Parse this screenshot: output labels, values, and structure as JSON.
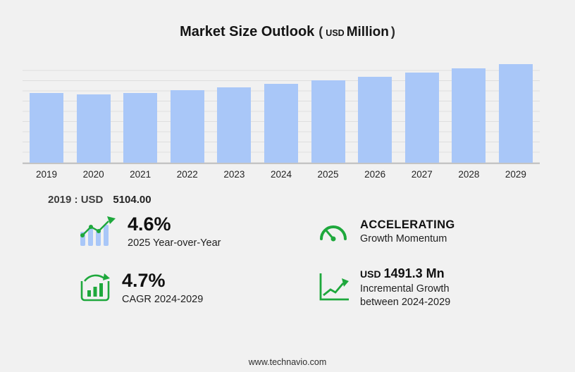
{
  "title": {
    "main": "Market Size Outlook",
    "open": "(",
    "currency": "USD",
    "unit": "Million",
    "close": ")"
  },
  "chart_data": {
    "type": "bar",
    "title": "Market Size Outlook (USD Million)",
    "categories": [
      "2019",
      "2020",
      "2021",
      "2022",
      "2023",
      "2024",
      "2025",
      "2026",
      "2027",
      "2028",
      "2029"
    ],
    "values": [
      5104,
      5020,
      5120,
      5350,
      5550,
      5778,
      6044,
      6328,
      6625,
      6937,
      7269
    ],
    "xlabel": "",
    "ylabel": "",
    "ylim": [
      0,
      7450
    ],
    "grid": true,
    "legend": "none",
    "bar_color": "#a9c7f8",
    "labeled_point": {
      "year": "2019",
      "value": "5104.00",
      "unit": "USD Million"
    }
  },
  "annotation": {
    "label": "2019 : USD",
    "value": "5104.00"
  },
  "stats": [
    {
      "icon": "yoy-bar-chart-icon",
      "value": "4.6%",
      "label": "2025 Year-over-Year"
    },
    {
      "icon": "gauge-icon",
      "value": "ACCELERATING",
      "label": "Growth Momentum"
    },
    {
      "icon": "cagr-chart-icon",
      "value": "4.7%",
      "label": "CAGR 2024-2029"
    },
    {
      "icon": "incremental-growth-icon",
      "value_prefix": "USD",
      "value": "1491.3 Mn",
      "label": "Incremental Growth between 2024-2029"
    }
  ],
  "footer": {
    "url": "www.technavio.com"
  },
  "colors": {
    "bar": "#a9c7f8",
    "green": "#1ea83c",
    "background": "#f1f1f1",
    "grid": "#dedede"
  }
}
